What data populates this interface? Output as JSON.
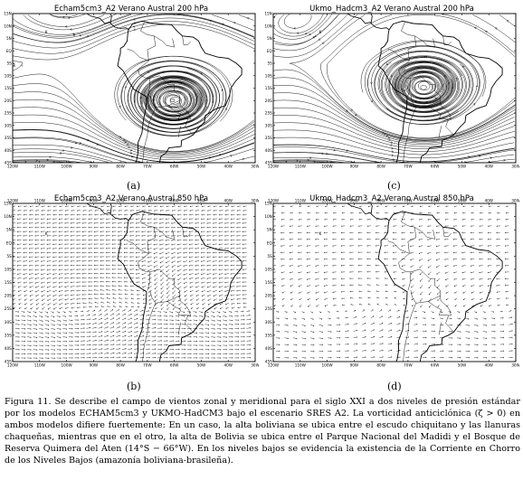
{
  "panels": [
    {
      "id": "a",
      "title": "Echam5cm3_A2 Verano Austral 200 hPa",
      "label": "(a)",
      "kind": "stream",
      "model": "echam",
      "vector_scale": ""
    },
    {
      "id": "c",
      "title": "Ukmo_Hadcm3_A2 Verano Austral 200 hPa",
      "label": "(c)",
      "kind": "stream",
      "model": "ukmo",
      "vector_scale": ""
    },
    {
      "id": "b",
      "title": "Echam5cm3_A2 Verano Austral 850 hPa",
      "label": "(b)",
      "kind": "vector",
      "model": "echam",
      "vector_scale": "10"
    },
    {
      "id": "d",
      "title": "Ukmo_Hadcm3_A2 Verano Austral 850 hPa",
      "label": "(d)",
      "kind": "vector",
      "model": "ukmo",
      "vector_scale": "10"
    }
  ],
  "axes": {
    "y_ticks": [
      "15N",
      "10N",
      "5N",
      "EQ",
      "5S",
      "10S",
      "15S",
      "20S",
      "25S",
      "30S",
      "35S",
      "40S",
      "45S"
    ],
    "x_ticks": [
      "120W",
      "110W",
      "100W",
      "90W",
      "80W",
      "70W",
      "60W",
      "50W",
      "40W",
      "30W"
    ],
    "x_ticks_top": [
      "120W",
      "110W",
      "100W",
      "90W",
      "80W",
      "70W",
      "60W",
      "50W",
      "40W",
      "30W"
    ]
  },
  "marker": "K",
  "caption": "Figura 11. Se describe el campo de vientos zonal y meridional para el siglo XXI a dos niveles de presión estándar por los modelos ECHAM5cm3 y UKMO-HadCM3 bajo el escenario SRES A2. La vorticidad anticiclónica (ζ > 0) en ambos modelos difiere fuertemente: En un caso, la alta boliviana se ubica entre el escudo chiquitano y las llanuras chaqueñas, mientras que en el otro, la alta de Bolivia se ubica entre el Parque Nacional del Madidi y el Bosque de Reserva Quimera del Aten (14°S − 66°W). En los niveles bajos se evidencia la existencia de la Corriente en Chorro de los Niveles Bajos (amazonía boliviana-brasileña)."
}
